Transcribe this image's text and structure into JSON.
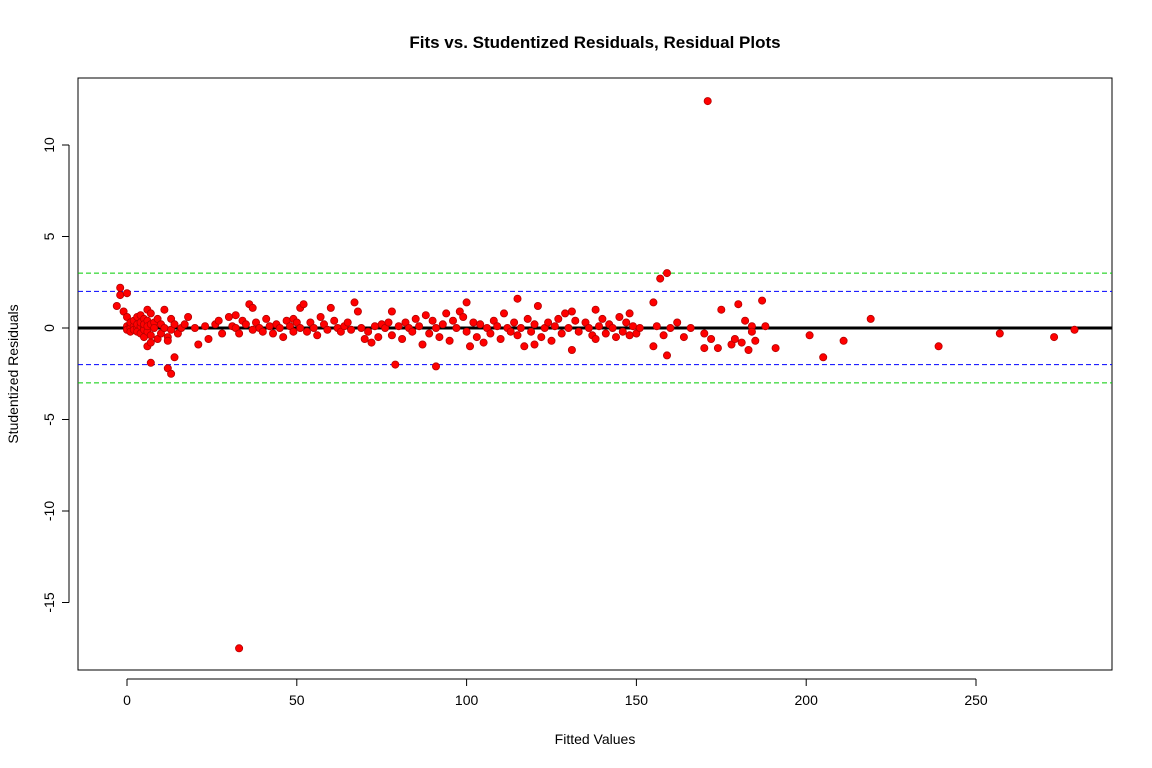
{
  "chart_data": {
    "type": "scatter",
    "title": "Fits vs. Studentized Residuals, Residual Plots",
    "xlabel": "Fitted Values",
    "ylabel": "Studentized Residuals",
    "xlim": [
      -15,
      290
    ],
    "ylim": [
      -18.5,
      13.5
    ],
    "xticks": [
      0,
      50,
      100,
      150,
      200,
      250
    ],
    "yticks": [
      -15,
      -10,
      -5,
      0,
      5,
      10
    ],
    "xtick_labels": [
      "0",
      "50",
      "100",
      "150",
      "200",
      "250"
    ],
    "ytick_labels": [
      "-15",
      "-10",
      "-5",
      "0",
      "5",
      "10"
    ],
    "point_color": "#ff0000",
    "point_outline_color": "#b40000",
    "grid": false,
    "reference_lines": [
      {
        "y": 0,
        "color": "#000000",
        "style": "solid"
      },
      {
        "y": 2,
        "color": "#0000ff",
        "style": "dashed"
      },
      {
        "y": -2,
        "color": "#0000ff",
        "style": "dashed"
      },
      {
        "y": 3,
        "color": "#00cc00",
        "style": "dashed"
      },
      {
        "y": -3,
        "color": "#00cc00",
        "style": "dashed"
      }
    ],
    "points": [
      [
        -3,
        1.2
      ],
      [
        -2,
        1.8
      ],
      [
        -2,
        2.2
      ],
      [
        -1,
        0.9
      ],
      [
        0,
        1.9
      ],
      [
        0,
        0.6
      ],
      [
        0,
        0.1
      ],
      [
        0,
        -0.1
      ],
      [
        1,
        0.2
      ],
      [
        1,
        0.0
      ],
      [
        1,
        -0.2
      ],
      [
        1,
        0.3
      ],
      [
        2,
        0.1
      ],
      [
        2,
        -0.1
      ],
      [
        2,
        0.4
      ],
      [
        3,
        0.0
      ],
      [
        3,
        0.2
      ],
      [
        3,
        -0.2
      ],
      [
        3,
        0.6
      ],
      [
        4,
        0.1
      ],
      [
        4,
        -0.3
      ],
      [
        4,
        0.3
      ],
      [
        4,
        0.7
      ],
      [
        5,
        0.0
      ],
      [
        5,
        -0.1
      ],
      [
        5,
        0.5
      ],
      [
        5,
        0.2
      ],
      [
        5,
        -0.5
      ],
      [
        6,
        1.0
      ],
      [
        6,
        0.4
      ],
      [
        6,
        -0.2
      ],
      [
        6,
        0.1
      ],
      [
        6,
        -1.0
      ],
      [
        7,
        0.8
      ],
      [
        7,
        -0.4
      ],
      [
        7,
        0.2
      ],
      [
        7,
        -1.9
      ],
      [
        7,
        -0.8
      ],
      [
        8,
        0.3
      ],
      [
        8,
        0.0
      ],
      [
        9,
        0.5
      ],
      [
        9,
        -0.6
      ],
      [
        10,
        0.2
      ],
      [
        10,
        -0.3
      ],
      [
        11,
        1.0
      ],
      [
        11,
        0.0
      ],
      [
        12,
        -0.5
      ],
      [
        12,
        -0.7
      ],
      [
        12,
        -2.2
      ],
      [
        13,
        -2.5
      ],
      [
        13,
        0.5
      ],
      [
        13,
        -0.1
      ],
      [
        14,
        -1.6
      ],
      [
        14,
        0.2
      ],
      [
        15,
        -0.3
      ],
      [
        16,
        0.0
      ],
      [
        17,
        0.2
      ],
      [
        18,
        0.6
      ],
      [
        20,
        0.0
      ],
      [
        21,
        -0.9
      ],
      [
        23,
        0.1
      ],
      [
        24,
        -0.6
      ],
      [
        26,
        0.2
      ],
      [
        27,
        0.4
      ],
      [
        28,
        -0.3
      ],
      [
        30,
        0.6
      ],
      [
        31,
        0.1
      ],
      [
        32,
        0.7
      ],
      [
        32,
        0.0
      ],
      [
        33,
        -17.5
      ],
      [
        33,
        -0.3
      ],
      [
        34,
        0.4
      ],
      [
        35,
        0.2
      ],
      [
        36,
        1.3
      ],
      [
        37,
        1.1
      ],
      [
        37,
        -0.1
      ],
      [
        38,
        0.3
      ],
      [
        39,
        0.0
      ],
      [
        40,
        -0.2
      ],
      [
        41,
        0.5
      ],
      [
        42,
        0.1
      ],
      [
        43,
        -0.3
      ],
      [
        44,
        0.2
      ],
      [
        45,
        0.0
      ],
      [
        46,
        -0.5
      ],
      [
        47,
        0.4
      ],
      [
        48,
        0.1
      ],
      [
        49,
        -0.2
      ],
      [
        49,
        0.5
      ],
      [
        50,
        0.3
      ],
      [
        51,
        1.1
      ],
      [
        51,
        0.0
      ],
      [
        52,
        1.3
      ],
      [
        53,
        -0.2
      ],
      [
        54,
        0.3
      ],
      [
        55,
        0.0
      ],
      [
        56,
        -0.4
      ],
      [
        57,
        0.6
      ],
      [
        58,
        0.2
      ],
      [
        59,
        -0.1
      ],
      [
        60,
        1.1
      ],
      [
        61,
        0.4
      ],
      [
        62,
        0.0
      ],
      [
        63,
        -0.2
      ],
      [
        64,
        0.1
      ],
      [
        65,
        0.3
      ],
      [
        66,
        -0.1
      ],
      [
        67,
        1.4
      ],
      [
        68,
        0.9
      ],
      [
        69,
        0.0
      ],
      [
        70,
        -0.6
      ],
      [
        71,
        -0.2
      ],
      [
        72,
        -0.8
      ],
      [
        73,
        0.1
      ],
      [
        74,
        -0.5
      ],
      [
        75,
        0.2
      ],
      [
        76,
        0.0
      ],
      [
        77,
        0.3
      ],
      [
        78,
        0.9
      ],
      [
        78,
        -0.4
      ],
      [
        79,
        -2.0
      ],
      [
        80,
        0.1
      ],
      [
        81,
        -0.6
      ],
      [
        82,
        0.3
      ],
      [
        83,
        0.0
      ],
      [
        84,
        -0.2
      ],
      [
        85,
        0.5
      ],
      [
        86,
        0.1
      ],
      [
        87,
        -0.9
      ],
      [
        88,
        0.7
      ],
      [
        89,
        -0.3
      ],
      [
        90,
        0.4
      ],
      [
        91,
        -2.1
      ],
      [
        91,
        0.0
      ],
      [
        92,
        -0.5
      ],
      [
        93,
        0.2
      ],
      [
        94,
        0.8
      ],
      [
        95,
        -0.7
      ],
      [
        96,
        0.4
      ],
      [
        97,
        0.0
      ],
      [
        98,
        0.9
      ],
      [
        99,
        0.6
      ],
      [
        100,
        1.4
      ],
      [
        100,
        -0.2
      ],
      [
        101,
        -1.0
      ],
      [
        102,
        0.3
      ],
      [
        103,
        -0.5
      ],
      [
        104,
        0.2
      ],
      [
        105,
        -0.8
      ],
      [
        106,
        0.0
      ],
      [
        107,
        -0.3
      ],
      [
        108,
        0.4
      ],
      [
        109,
        0.1
      ],
      [
        110,
        -0.6
      ],
      [
        111,
        0.8
      ],
      [
        112,
        0.0
      ],
      [
        113,
        -0.2
      ],
      [
        114,
        0.3
      ],
      [
        115,
        1.6
      ],
      [
        115,
        -0.4
      ],
      [
        116,
        0.0
      ],
      [
        117,
        -1.0
      ],
      [
        118,
        0.5
      ],
      [
        119,
        -0.2
      ],
      [
        120,
        -0.9
      ],
      [
        120,
        0.2
      ],
      [
        121,
        1.2
      ],
      [
        122,
        -0.5
      ],
      [
        123,
        0.0
      ],
      [
        124,
        0.3
      ],
      [
        125,
        -0.7
      ],
      [
        126,
        0.1
      ],
      [
        127,
        0.5
      ],
      [
        128,
        -0.3
      ],
      [
        129,
        0.8
      ],
      [
        130,
        0.0
      ],
      [
        131,
        -1.2
      ],
      [
        131,
        0.9
      ],
      [
        132,
        0.4
      ],
      [
        133,
        -0.2
      ],
      [
        135,
        0.3
      ],
      [
        136,
        0.0
      ],
      [
        137,
        -0.4
      ],
      [
        138,
        1.0
      ],
      [
        138,
        -0.6
      ],
      [
        139,
        0.1
      ],
      [
        140,
        0.5
      ],
      [
        141,
        -0.3
      ],
      [
        142,
        0.2
      ],
      [
        143,
        0.0
      ],
      [
        144,
        -0.5
      ],
      [
        145,
        0.6
      ],
      [
        146,
        -0.2
      ],
      [
        147,
        0.3
      ],
      [
        148,
        0.8
      ],
      [
        148,
        -0.4
      ],
      [
        149,
        0.1
      ],
      [
        150,
        -0.3
      ],
      [
        151,
        0.0
      ],
      [
        155,
        -1.0
      ],
      [
        155,
        1.4
      ],
      [
        156,
        0.1
      ],
      [
        157,
        2.7
      ],
      [
        158,
        -0.4
      ],
      [
        159,
        3.0
      ],
      [
        159,
        -1.5
      ],
      [
        160,
        0.0
      ],
      [
        162,
        0.3
      ],
      [
        164,
        -0.5
      ],
      [
        166,
        0.0
      ],
      [
        170,
        -0.3
      ],
      [
        170,
        -1.1
      ],
      [
        171,
        12.4
      ],
      [
        172,
        -0.6
      ],
      [
        174,
        -1.1
      ],
      [
        175,
        1.0
      ],
      [
        178,
        -0.9
      ],
      [
        179,
        -0.6
      ],
      [
        180,
        1.3
      ],
      [
        181,
        -0.8
      ],
      [
        182,
        0.4
      ],
      [
        183,
        -1.2
      ],
      [
        184,
        0.1
      ],
      [
        184,
        -0.2
      ],
      [
        185,
        -0.7
      ],
      [
        187,
        1.5
      ],
      [
        188,
        0.1
      ],
      [
        191,
        -1.1
      ],
      [
        201,
        -0.4
      ],
      [
        205,
        -1.6
      ],
      [
        211,
        -0.7
      ],
      [
        219,
        0.5
      ],
      [
        239,
        -1.0
      ],
      [
        257,
        -0.3
      ],
      [
        273,
        -0.5
      ],
      [
        279,
        -0.1
      ]
    ]
  }
}
